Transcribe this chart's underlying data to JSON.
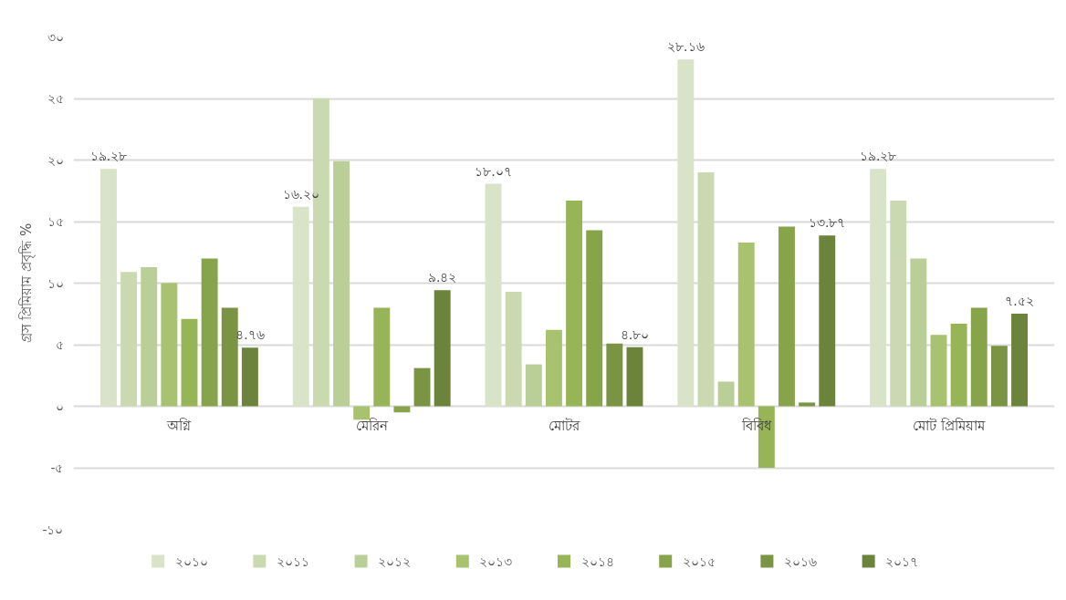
{
  "chart_data": {
    "type": "bar",
    "ylabel": "গ্রস প্রিমিয়াম প্রবৃদ্ধি %",
    "categories": [
      "অগ্নি",
      "মেরিন",
      "মোটর",
      "বিবিধ",
      "মোট প্রিমিয়াম"
    ],
    "series": [
      {
        "name": "২০১০",
        "color": "#d9e3c7",
        "values": [
          19.28,
          16.2,
          18.07,
          28.16,
          19.28
        ],
        "value_labels": [
          "১৯.২৮",
          "১৬.২০",
          "১৮.০৭",
          "২৮.১৬",
          "১৯.২৮"
        ]
      },
      {
        "name": "২০১১",
        "color": "#cad9b0",
        "values": [
          10.9,
          25.0,
          9.3,
          19.0,
          16.7
        ]
      },
      {
        "name": "২০১২",
        "color": "#bacf98",
        "values": [
          11.3,
          19.9,
          3.4,
          2.0,
          12.0
        ]
      },
      {
        "name": "২০১৩",
        "color": "#a8c26f",
        "values": [
          10.0,
          -1.1,
          6.2,
          13.3,
          5.8
        ]
      },
      {
        "name": "২০১৪",
        "color": "#97b557",
        "values": [
          7.1,
          8.0,
          16.7,
          -5.0,
          6.7
        ]
      },
      {
        "name": "২০১৫",
        "color": "#88a44b",
        "values": [
          12.0,
          -0.5,
          14.3,
          14.6,
          8.0
        ]
      },
      {
        "name": "২০১৬",
        "color": "#7a9443",
        "values": [
          8.0,
          3.1,
          5.1,
          0.3,
          4.9
        ]
      },
      {
        "name": "২০১৭",
        "color": "#6b833a",
        "values": [
          4.76,
          9.42,
          4.8,
          13.87,
          7.52
        ],
        "value_labels": [
          "৪.৭৬",
          "৯.৪২",
          "৪.৮০",
          "১৩.৮৭",
          "৭.৫২"
        ]
      }
    ],
    "ylim": [
      -10,
      30
    ],
    "yticks": [
      {
        "value": -10,
        "label": "-১০"
      },
      {
        "value": -5,
        "label": "-৫"
      },
      {
        "value": 0,
        "label": "০"
      },
      {
        "value": 5,
        "label": "৫"
      },
      {
        "value": 10,
        "label": "১০"
      },
      {
        "value": 15,
        "label": "১৫"
      },
      {
        "value": 20,
        "label": "২০"
      },
      {
        "value": 25,
        "label": "২৫"
      },
      {
        "value": 30,
        "label": "৩০"
      }
    ],
    "grid": "y",
    "legend": "bottom"
  }
}
